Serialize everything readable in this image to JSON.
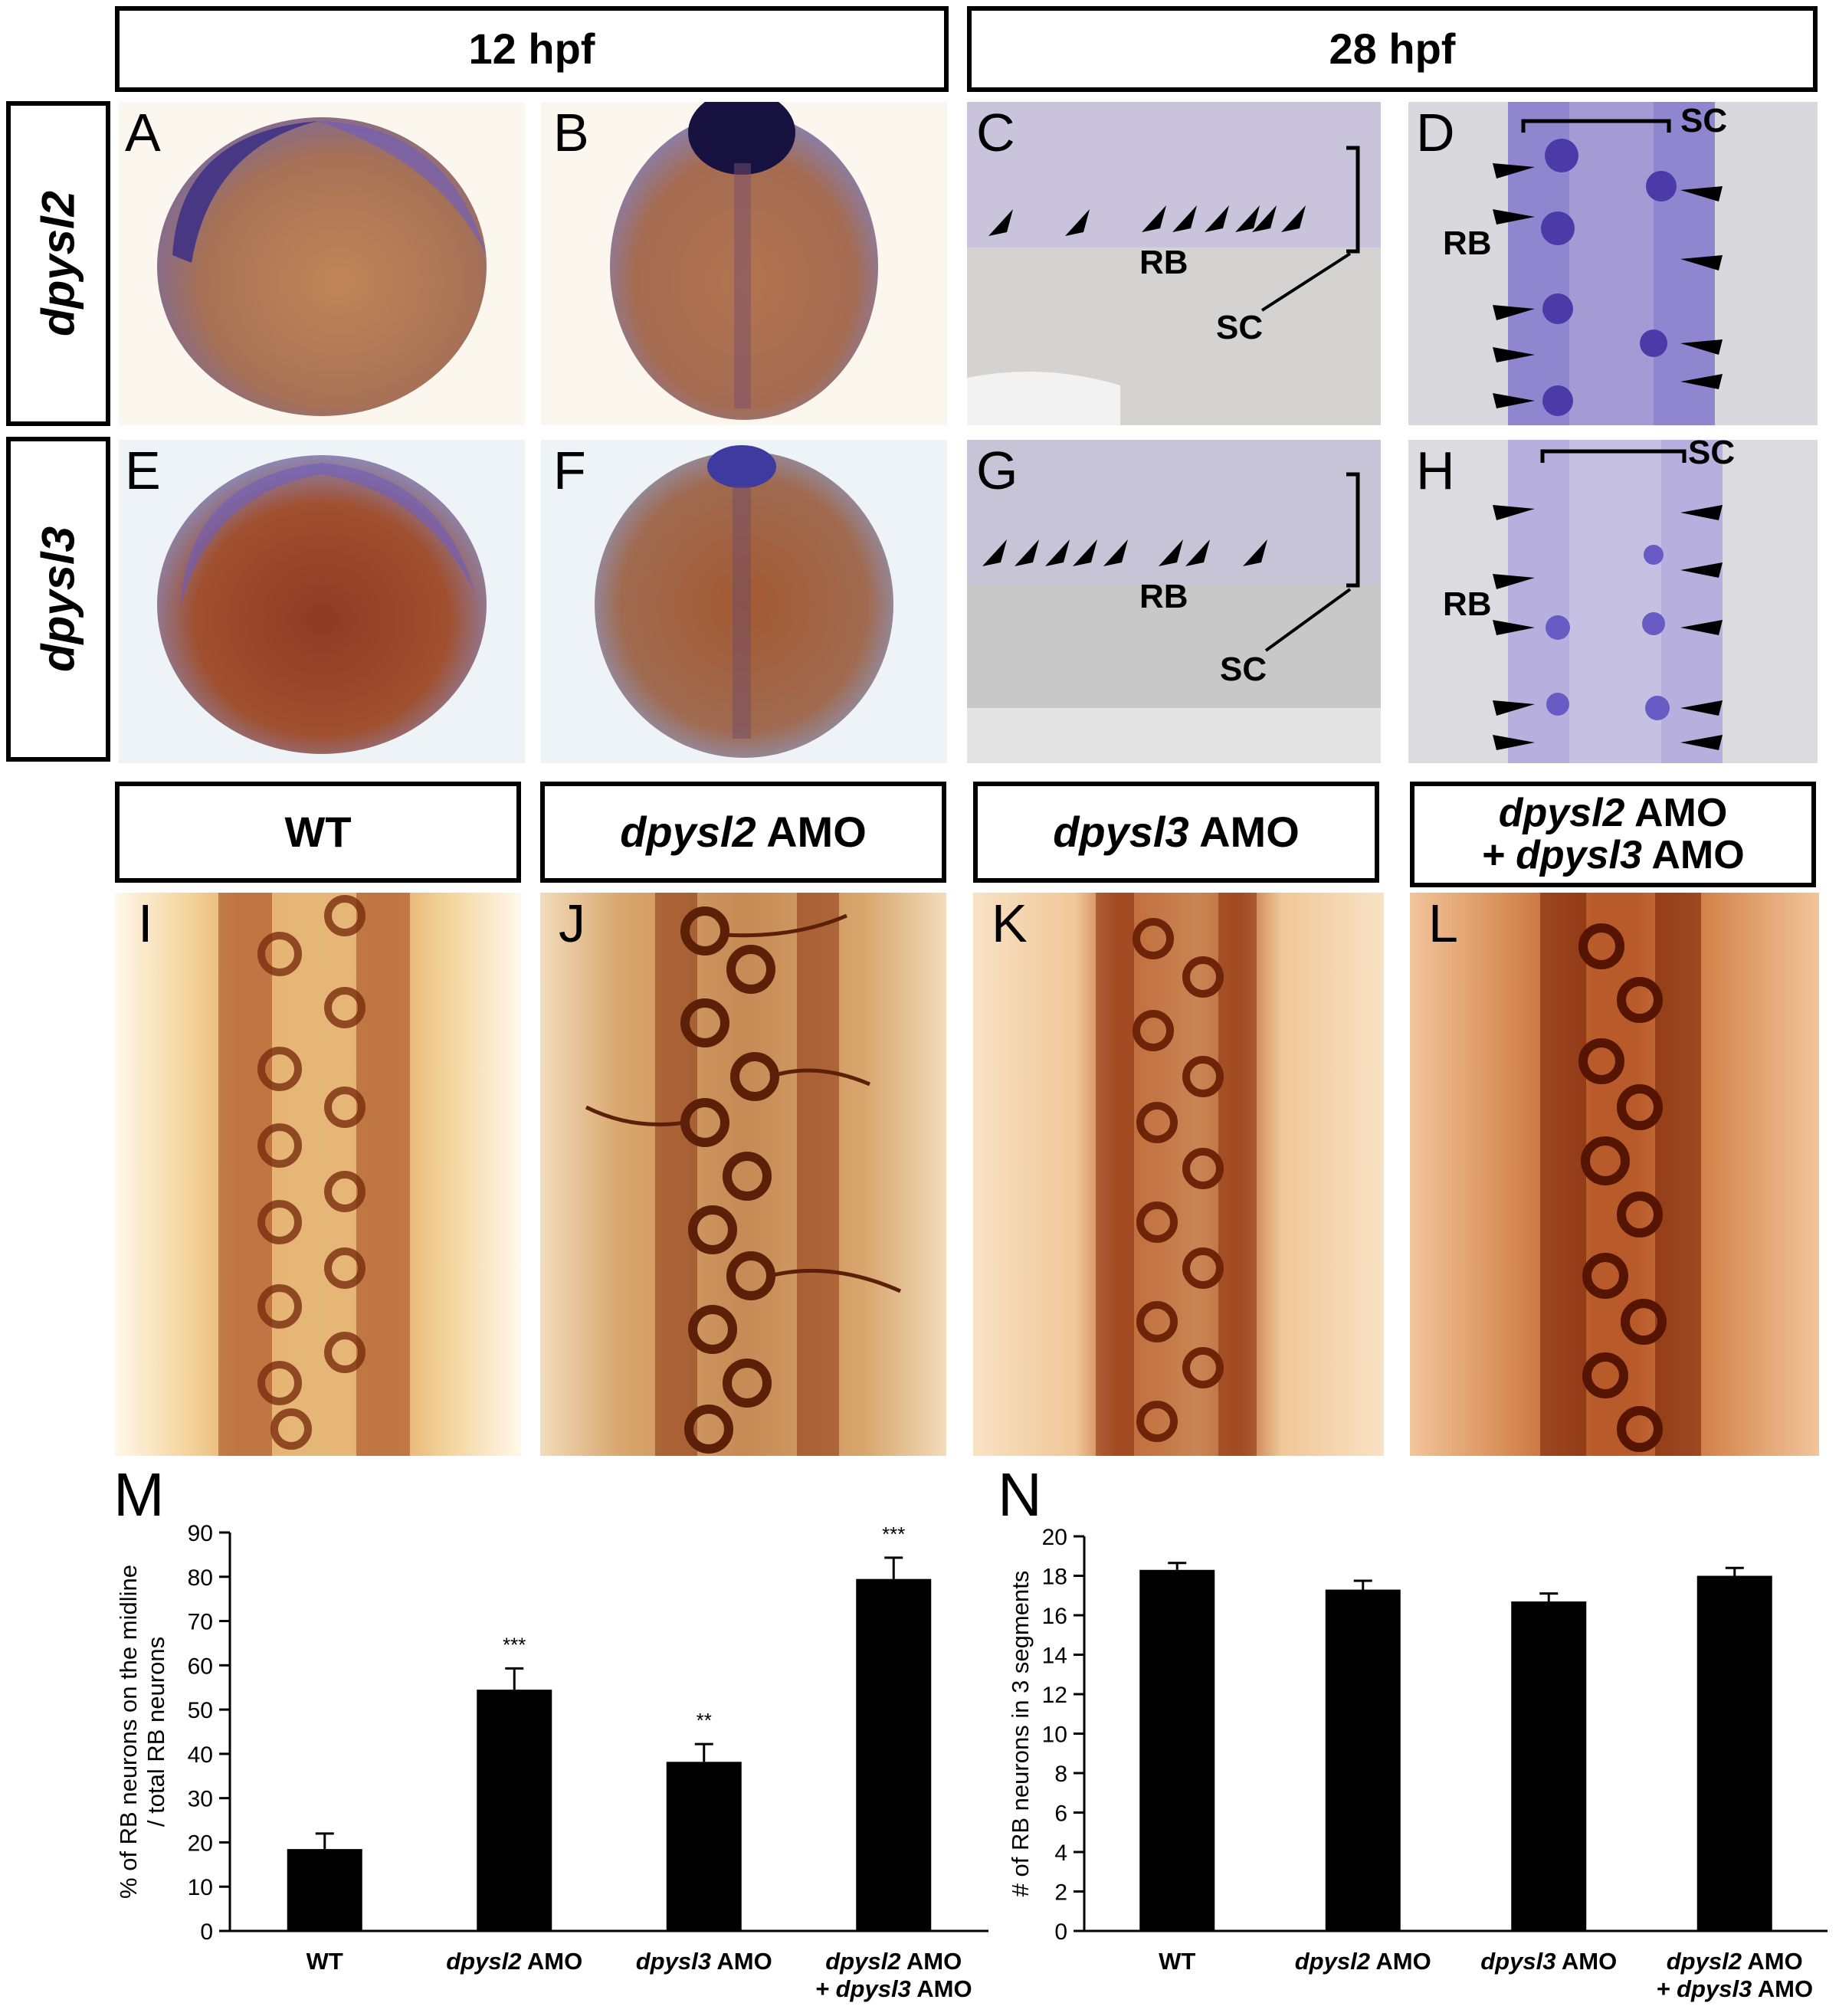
{
  "headers": {
    "stage_12": "12 hpf",
    "stage_28": "28 hpf",
    "row_dpysl2": "dpysl2",
    "row_dpysl3": "dpysl3",
    "wt": "WT",
    "amo2_gene": "dpysl2",
    "amo2_suffix": " AMO",
    "amo3_gene": "dpysl3",
    "amo3_suffix": " AMO",
    "dbl_line1_gene": "dpysl2",
    "dbl_line1_suffix": " AMO",
    "dbl_line2_prefix": "+ ",
    "dbl_line2_gene": "dpysl3",
    "dbl_line2_suffix": " AMO"
  },
  "panel_labels": [
    "A",
    "B",
    "C",
    "D",
    "E",
    "F",
    "G",
    "H",
    "I",
    "J",
    "K",
    "L",
    "M",
    "N"
  ],
  "annotations": {
    "rb": "RB",
    "sc": "SC"
  },
  "colors": {
    "stain_purple": "#6a5bc4",
    "yolk_brown": "#b0704a",
    "dab_brown": "#7a2e0e",
    "bar": "#000000"
  },
  "chart_data": [
    {
      "panel": "M",
      "type": "bar",
      "ylabel_line1": "% of RB neurons on the midline",
      "ylabel_line2": "/ total RB neurons",
      "ylim": [
        0,
        90
      ],
      "yticks": [
        0,
        10,
        20,
        30,
        40,
        50,
        60,
        70,
        80,
        90
      ],
      "categories": [
        {
          "gene": "",
          "suffix": "WT",
          "line2_gene": "",
          "line2_suffix": ""
        },
        {
          "gene": "dpysl2",
          "suffix": " AMO",
          "line2_gene": "",
          "line2_suffix": ""
        },
        {
          "gene": "dpysl3",
          "suffix": " AMO",
          "line2_gene": "",
          "line2_suffix": ""
        },
        {
          "gene": "dpysl2",
          "suffix": " AMO",
          "line2_gene": "dpysl3",
          "line2_suffix": " AMO"
        }
      ],
      "values": [
        18.5,
        54.5,
        38.2,
        79.5
      ],
      "errors": [
        3.5,
        4.8,
        4.0,
        4.8
      ],
      "significance": [
        "",
        "***",
        "**",
        "***"
      ]
    },
    {
      "panel": "N",
      "type": "bar",
      "ylabel": "# of RB neurons in 3 segments",
      "ylim": [
        0,
        20
      ],
      "yticks": [
        0,
        2,
        4,
        6,
        8,
        10,
        12,
        14,
        16,
        18,
        20
      ],
      "categories": [
        {
          "gene": "",
          "suffix": "WT",
          "line2_gene": "",
          "line2_suffix": ""
        },
        {
          "gene": "dpysl2",
          "suffix": " AMO",
          "line2_gene": "",
          "line2_suffix": ""
        },
        {
          "gene": "dpysl3",
          "suffix": " AMO",
          "line2_gene": "",
          "line2_suffix": ""
        },
        {
          "gene": "dpysl2",
          "suffix": " AMO",
          "line2_gene": "dpysl3",
          "line2_suffix": " AMO"
        }
      ],
      "values": [
        18.3,
        17.3,
        16.7,
        18.0
      ],
      "errors": [
        0.35,
        0.45,
        0.4,
        0.4
      ],
      "significance": [
        "",
        "",
        "",
        ""
      ]
    }
  ]
}
